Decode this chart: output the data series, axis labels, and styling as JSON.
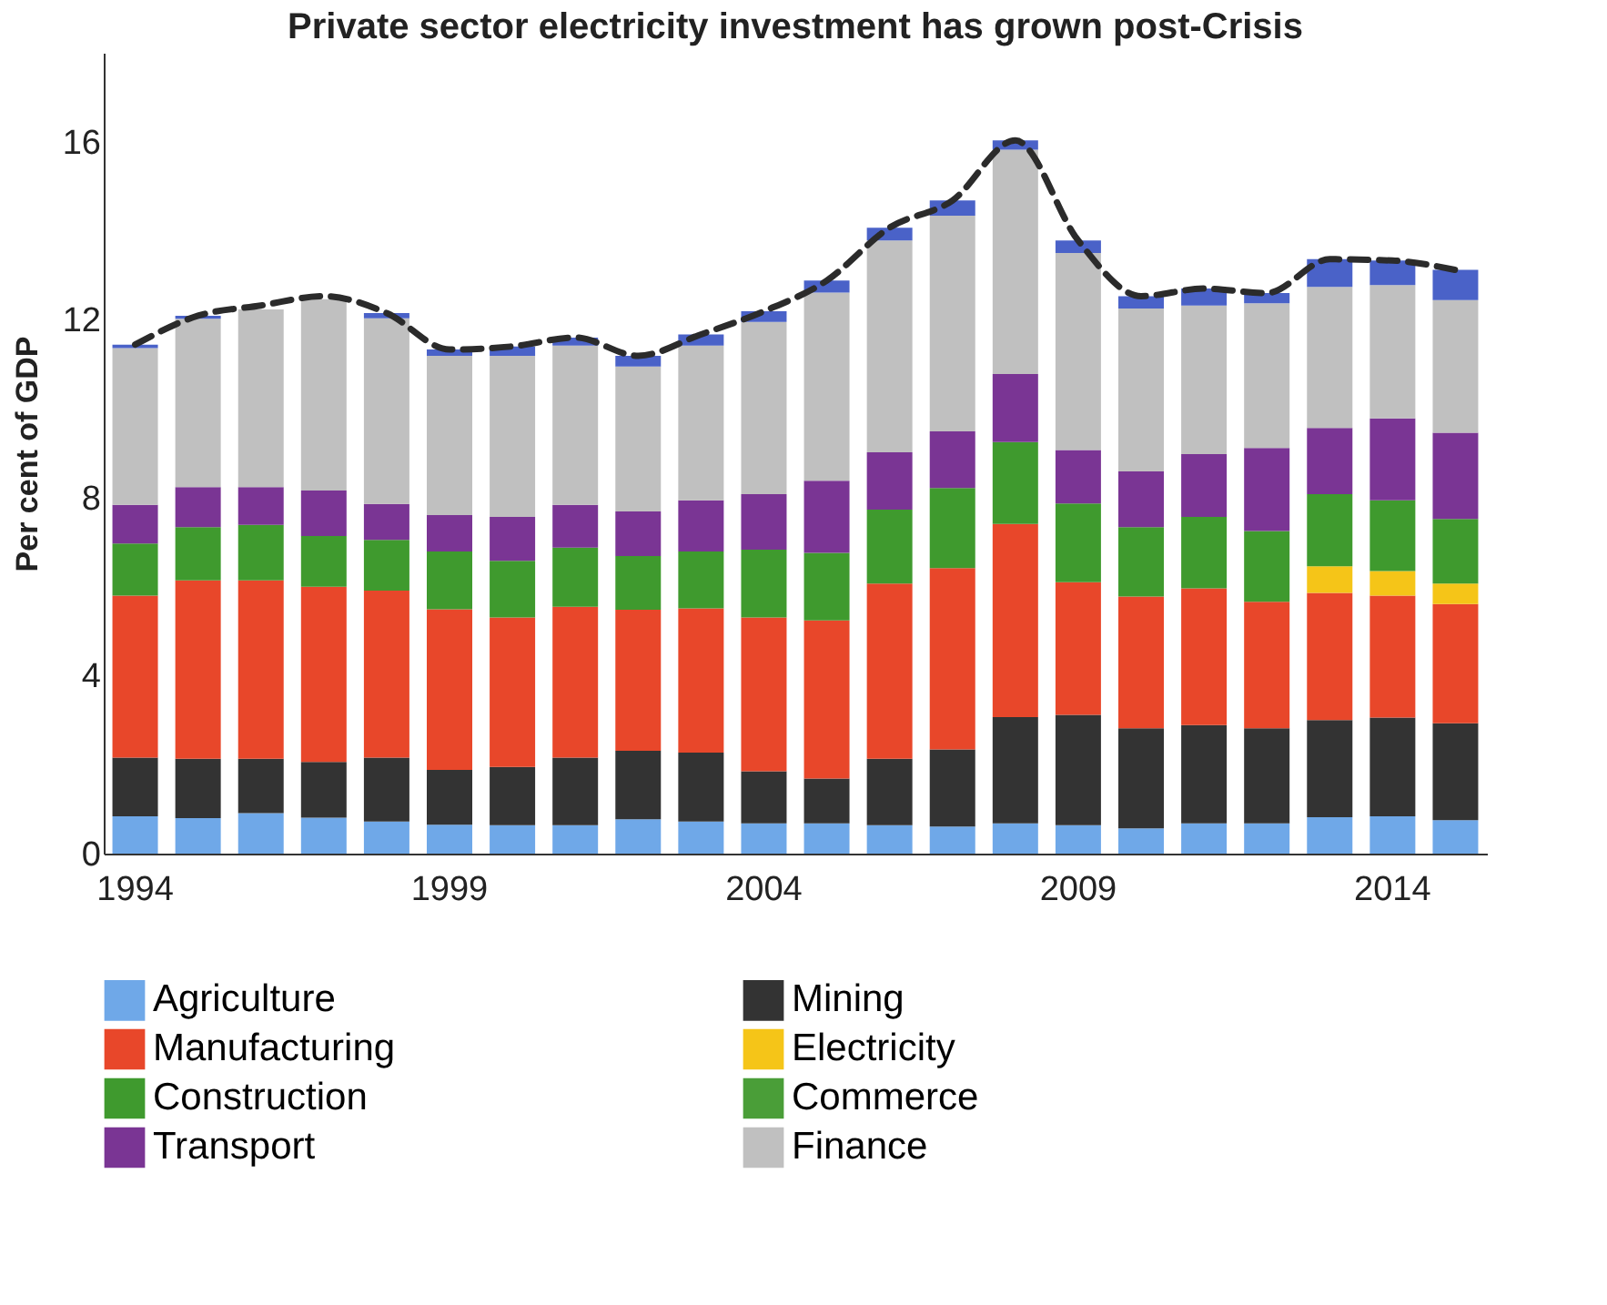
{
  "chart_data": {
    "type": "bar",
    "title": "Private sector electricity investment has grown post-Crisis",
    "ylabel": "Per cent of GDP",
    "categories": [
      "1994",
      null,
      null,
      null,
      null,
      "1999",
      null,
      null,
      null,
      null,
      "2004",
      null,
      null,
      null,
      null,
      "2009",
      null,
      null,
      null,
      null,
      "2014",
      null
    ],
    "stacked": true,
    "ylim": [
      0,
      18
    ],
    "yticks": [
      0,
      4,
      8,
      12,
      16
    ],
    "legend": "bottom",
    "series": [
      {
        "name": "Agriculture",
        "color": "#6fa8e8",
        "values": [
          0.84,
          0.8,
          0.91,
          0.81,
          0.72,
          0.65,
          0.64,
          0.64,
          0.77,
          0.72,
          0.68,
          0.68,
          0.64,
          0.61,
          0.68,
          0.64,
          0.57,
          0.68,
          0.68,
          0.82,
          0.84,
          0.75
        ]
      },
      {
        "name": "Mining",
        "color": "#333333",
        "values": [
          1.32,
          1.33,
          1.22,
          1.25,
          1.44,
          1.23,
          1.31,
          1.52,
          1.54,
          1.55,
          1.17,
          1.01,
          1.49,
          1.73,
          2.39,
          2.48,
          2.25,
          2.21,
          2.14,
          2.18,
          2.22,
          2.18
        ]
      },
      {
        "name": "Manufacturing",
        "color": "#e8472a",
        "values": [
          3.64,
          4.01,
          4.01,
          3.94,
          3.75,
          3.61,
          3.36,
          3.39,
          3.17,
          3.24,
          3.46,
          3.55,
          3.94,
          4.08,
          4.34,
          2.98,
          2.96,
          3.07,
          2.84,
          2.86,
          2.74,
          2.68
        ]
      },
      {
        "name": "Electricity",
        "color": "#f5c518",
        "values": [
          0,
          0,
          0,
          0,
          0,
          0,
          0,
          0,
          0,
          0,
          0,
          0,
          0,
          0,
          0,
          0,
          0,
          0,
          0,
          0.6,
          0.55,
          0.46
        ]
      },
      {
        "name": "Construction",
        "color": "#3f9a2e",
        "values": [
          1.17,
          1.2,
          1.25,
          1.14,
          1.14,
          1.3,
          1.27,
          1.33,
          1.21,
          1.28,
          1.52,
          1.52,
          1.66,
          1.8,
          1.84,
          1.77,
          1.56,
          1.61,
          1.59,
          1.62,
          1.59,
          1.45
        ]
      },
      {
        "name": "Commerce",
        "color": "#4a9e38",
        "values": [
          0,
          0,
          0,
          0,
          0,
          0,
          0,
          0,
          0,
          0,
          0,
          0,
          0,
          0,
          0,
          0,
          0,
          0,
          0,
          0,
          0,
          0
        ]
      },
      {
        "name": "Transport",
        "color": "#7a3594",
        "values": [
          0.87,
          0.9,
          0.85,
          1.02,
          0.81,
          0.82,
          0.99,
          0.96,
          1.0,
          1.15,
          1.25,
          1.62,
          1.29,
          1.27,
          1.53,
          1.2,
          1.25,
          1.41,
          1.87,
          1.49,
          1.84,
          1.94
        ]
      },
      {
        "name": "Finance",
        "color": "#c0c0c0",
        "values": [
          3.52,
          3.78,
          3.99,
          4.3,
          4.17,
          3.58,
          3.62,
          3.58,
          3.26,
          3.48,
          3.87,
          4.23,
          4.76,
          4.85,
          5.04,
          4.43,
          3.66,
          3.34,
          3.25,
          3.17,
          3.0,
          2.98
        ]
      },
      {
        "color": "#4a62c8",
        "values": [
          0.08,
          0.07,
          null,
          null,
          0.12,
          0.14,
          0.21,
          0.18,
          0.24,
          0.25,
          0.24,
          0.27,
          0.29,
          0.34,
          0.21,
          0.28,
          0.28,
          0.38,
          0.23,
          0.62,
          0.55,
          0.68
        ]
      },
      {
        "type": "line",
        "color": "#2b2b2b",
        "line_style": "dashed",
        "values": [
          11.44,
          12.09,
          12.32,
          12.53,
          12.15,
          11.33,
          11.4,
          11.6,
          11.19,
          11.67,
          12.19,
          12.88,
          14.07,
          14.68,
          16.03,
          13.78,
          12.53,
          12.7,
          12.6,
          13.36,
          13.33,
          13.12
        ]
      }
    ]
  }
}
